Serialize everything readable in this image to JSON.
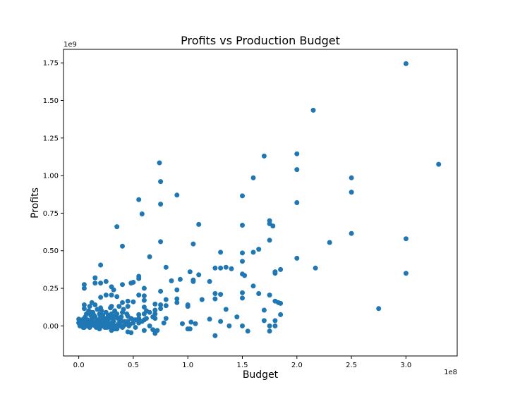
{
  "chart_data": {
    "type": "scatter",
    "title": "Profits vs Production Budget",
    "xlabel": "Budget",
    "ylabel": "Profits",
    "x_offset_label": "1e8",
    "y_offset_label": "1e9",
    "x_scale": 100000000,
    "y_scale": 1000000000,
    "xlim": [
      -0.14,
      3.47
    ],
    "ylim": [
      -0.2,
      1.84
    ],
    "xticks": [
      0.0,
      0.5,
      1.0,
      1.5,
      2.0,
      2.5,
      3.0
    ],
    "xtick_labels": [
      "0.0",
      "0.5",
      "1.0",
      "1.5",
      "2.0",
      "2.5",
      "3.0"
    ],
    "yticks": [
      0.0,
      0.25,
      0.5,
      0.75,
      1.0,
      1.25,
      1.5,
      1.75
    ],
    "ytick_labels": [
      "0.00",
      "0.25",
      "0.50",
      "0.75",
      "1.00",
      "1.25",
      "1.50",
      "1.75"
    ],
    "grid": false,
    "legend": "none",
    "point_color": "#1f77b4",
    "points": [
      [
        3.0,
        1.745
      ],
      [
        2.15,
        1.435
      ],
      [
        2.0,
        1.145
      ],
      [
        1.7,
        1.13
      ],
      [
        3.3,
        1.075
      ],
      [
        0.74,
        1.085
      ],
      [
        2.0,
        1.04
      ],
      [
        2.5,
        0.985
      ],
      [
        1.6,
        0.985
      ],
      [
        0.75,
        0.96
      ],
      [
        2.5,
        0.89
      ],
      [
        0.9,
        0.87
      ],
      [
        1.5,
        0.865
      ],
      [
        0.55,
        0.84
      ],
      [
        2.0,
        0.82
      ],
      [
        0.75,
        0.81
      ],
      [
        0.58,
        0.745
      ],
      [
        1.75,
        0.7
      ],
      [
        1.75,
        0.68
      ],
      [
        1.1,
        0.675
      ],
      [
        1.5,
        0.67
      ],
      [
        1.78,
        0.665
      ],
      [
        0.35,
        0.66
      ],
      [
        2.5,
        0.615
      ],
      [
        3.0,
        0.58
      ],
      [
        1.75,
        0.57
      ],
      [
        0.75,
        0.56
      ],
      [
        2.3,
        0.555
      ],
      [
        1.05,
        0.545
      ],
      [
        0.4,
        0.53
      ],
      [
        1.65,
        0.51
      ],
      [
        1.6,
        0.49
      ],
      [
        1.3,
        0.49
      ],
      [
        1.5,
        0.485
      ],
      [
        0.65,
        0.46
      ],
      [
        2.0,
        0.45
      ],
      [
        1.5,
        0.43
      ],
      [
        0.2,
        0.405
      ],
      [
        0.8,
        0.39
      ],
      [
        1.35,
        0.39
      ],
      [
        1.4,
        0.38
      ],
      [
        1.25,
        0.385
      ],
      [
        1.3,
        0.385
      ],
      [
        2.17,
        0.385
      ],
      [
        1.85,
        0.375
      ],
      [
        1.02,
        0.36
      ],
      [
        1.8,
        0.36
      ],
      [
        1.8,
        0.35
      ],
      [
        3.0,
        0.35
      ],
      [
        1.5,
        0.345
      ],
      [
        1.52,
        0.335
      ],
      [
        1.1,
        0.34
      ],
      [
        0.55,
        0.33
      ],
      [
        0.55,
        0.315
      ],
      [
        0.15,
        0.32
      ],
      [
        0.93,
        0.31
      ],
      [
        1.05,
        0.305
      ],
      [
        0.85,
        0.3
      ],
      [
        1.05,
        0.295
      ],
      [
        1.2,
        0.295
      ],
      [
        0.5,
        0.29
      ],
      [
        0.25,
        0.295
      ],
      [
        0.2,
        0.285
      ],
      [
        0.15,
        0.285
      ],
      [
        0.48,
        0.285
      ],
      [
        0.05,
        0.275
      ],
      [
        0.4,
        0.275
      ],
      [
        0.05,
        0.25
      ],
      [
        0.3,
        0.26
      ],
      [
        0.6,
        0.25
      ],
      [
        0.9,
        0.24
      ],
      [
        0.32,
        0.24
      ],
      [
        1.6,
        0.265
      ],
      [
        1.5,
        0.22
      ],
      [
        1.65,
        0.215
      ],
      [
        0.75,
        0.23
      ],
      [
        1.25,
        0.215
      ],
      [
        1.3,
        0.21
      ],
      [
        0.55,
        0.205
      ],
      [
        0.25,
        0.205
      ],
      [
        0.3,
        0.205
      ],
      [
        0.6,
        0.2
      ],
      [
        1.75,
        0.205
      ],
      [
        0.35,
        0.195
      ],
      [
        0.2,
        0.19
      ],
      [
        1.5,
        0.185
      ],
      [
        1.25,
        0.18
      ],
      [
        0.9,
        0.18
      ],
      [
        1.13,
        0.175
      ],
      [
        0.8,
        0.175
      ],
      [
        0.6,
        0.17
      ],
      [
        0.45,
        0.165
      ],
      [
        1.8,
        0.165
      ],
      [
        0.9,
        0.155
      ],
      [
        1.83,
        0.155
      ],
      [
        1.85,
        0.15
      ],
      [
        0.12,
        0.155
      ],
      [
        0.5,
        0.16
      ],
      [
        0.4,
        0.155
      ],
      [
        0.7,
        0.145
      ],
      [
        0.75,
        0.14
      ],
      [
        0.05,
        0.14
      ],
      [
        0.15,
        0.14
      ],
      [
        0.45,
        0.13
      ],
      [
        1.0,
        0.14
      ],
      [
        0.8,
        0.135
      ],
      [
        1.0,
        0.13
      ],
      [
        0.3,
        0.13
      ],
      [
        0.6,
        0.125
      ],
      [
        0.2,
        0.12
      ],
      [
        0.05,
        0.115
      ],
      [
        0.1,
        0.13
      ],
      [
        1.35,
        0.11
      ],
      [
        0.75,
        0.115
      ],
      [
        0.7,
        0.105
      ],
      [
        1.7,
        0.105
      ],
      [
        2.75,
        0.115
      ],
      [
        0.62,
        0.1
      ],
      [
        0.4,
        0.09
      ],
      [
        0.1,
        0.095
      ],
      [
        0.55,
        0.075
      ],
      [
        0.3,
        0.075
      ],
      [
        1.85,
        0.075
      ],
      [
        0.45,
        0.065
      ],
      [
        1.45,
        0.06
      ],
      [
        0.7,
        0.05
      ],
      [
        0.8,
        0.05
      ],
      [
        1.2,
        0.045
      ],
      [
        0.35,
        0.055
      ],
      [
        0.25,
        0.05
      ],
      [
        0.0,
        0.045
      ],
      [
        0.5,
        0.04
      ],
      [
        0.6,
        0.04
      ],
      [
        1.7,
        0.035
      ],
      [
        1.8,
        0.035
      ],
      [
        1.3,
        0.03
      ],
      [
        1.03,
        0.025
      ],
      [
        0.78,
        0.02
      ],
      [
        0.95,
        0.015
      ],
      [
        1.07,
        0.015
      ],
      [
        1.5,
        0.0
      ],
      [
        1.38,
        0.0
      ],
      [
        0.65,
        0.0
      ],
      [
        0.55,
        0.02
      ],
      [
        1.75,
        0.0
      ],
      [
        1.8,
        0.0
      ],
      [
        1.0,
        -0.02
      ],
      [
        1.02,
        -0.02
      ],
      [
        0.68,
        -0.025
      ],
      [
        0.72,
        -0.03
      ],
      [
        0.6,
        -0.03
      ],
      [
        1.55,
        -0.035
      ],
      [
        1.75,
        -0.035
      ],
      [
        0.45,
        -0.04
      ],
      [
        0.7,
        -0.05
      ],
      [
        0.35,
        -0.02
      ],
      [
        0.3,
        -0.03
      ],
      [
        1.25,
        -0.065
      ],
      [
        0.48,
        -0.045
      ],
      [
        0.03,
        0.01
      ],
      [
        0.06,
        0.02
      ],
      [
        0.08,
        0.0
      ],
      [
        0.1,
        0.03
      ],
      [
        0.12,
        0.05
      ],
      [
        0.14,
        0.01
      ],
      [
        0.16,
        -0.01
      ],
      [
        0.18,
        0.04
      ],
      [
        0.2,
        0.06
      ],
      [
        0.22,
        0.0
      ],
      [
        0.24,
        0.03
      ],
      [
        0.26,
        -0.01
      ],
      [
        0.28,
        0.05
      ],
      [
        0.3,
        0.02
      ],
      [
        0.32,
        -0.02
      ],
      [
        0.34,
        0.07
      ],
      [
        0.36,
        0.01
      ],
      [
        0.38,
        0.04
      ],
      [
        0.4,
        -0.01
      ],
      [
        0.42,
        0.03
      ],
      [
        0.44,
        0.08
      ],
      [
        0.46,
        0.0
      ],
      [
        0.48,
        0.05
      ],
      [
        0.5,
        0.02
      ],
      [
        0.52,
        -0.01
      ],
      [
        0.05,
        0.05
      ],
      [
        0.07,
        0.08
      ],
      [
        0.09,
        0.1
      ],
      [
        0.11,
        0.07
      ],
      [
        0.13,
        0.09
      ],
      [
        0.15,
        0.06
      ],
      [
        0.17,
        0.11
      ],
      [
        0.19,
        0.08
      ],
      [
        0.21,
        0.1
      ],
      [
        0.23,
        0.04
      ],
      [
        0.25,
        0.09
      ],
      [
        0.27,
        0.07
      ],
      [
        0.29,
        0.12
      ],
      [
        0.31,
        0.05
      ],
      [
        0.33,
        0.1
      ],
      [
        0.35,
        0.08
      ],
      [
        0.37,
        0.13
      ],
      [
        0.39,
        0.06
      ],
      [
        0.41,
        0.11
      ],
      [
        0.43,
        0.02
      ],
      [
        0.02,
        0.03
      ],
      [
        0.04,
        -0.01
      ],
      [
        0.06,
        0.06
      ],
      [
        0.08,
        0.04
      ],
      [
        0.1,
        -0.01
      ],
      [
        0.12,
        0.02
      ],
      [
        0.14,
        0.07
      ],
      [
        0.16,
        0.03
      ],
      [
        0.18,
        0.0
      ],
      [
        0.2,
        0.02
      ],
      [
        0.22,
        0.07
      ],
      [
        0.24,
        -0.01
      ],
      [
        0.26,
        0.04
      ],
      [
        0.28,
        0.0
      ],
      [
        0.3,
        0.08
      ],
      [
        0.32,
        0.03
      ],
      [
        0.34,
        -0.02
      ],
      [
        0.36,
        0.05
      ],
      [
        0.38,
        0.0
      ],
      [
        0.0,
        0.02
      ],
      [
        0.01,
        0.0
      ],
      [
        0.02,
        0.01
      ],
      [
        0.03,
        0.04
      ],
      [
        0.04,
        0.02
      ],
      [
        0.05,
        -0.01
      ],
      [
        0.09,
        0.01
      ],
      [
        0.11,
        0.0
      ],
      [
        0.13,
        0.03
      ],
      [
        0.15,
        0.0
      ],
      [
        0.17,
        0.02
      ],
      [
        0.19,
        -0.02
      ],
      [
        0.21,
        0.03
      ],
      [
        0.23,
        0.01
      ],
      [
        0.25,
        0.0
      ],
      [
        0.27,
        0.02
      ],
      [
        0.29,
        -0.01
      ],
      [
        0.31,
        0.01
      ],
      [
        0.33,
        0.0
      ],
      [
        0.37,
        0.02
      ],
      [
        0.39,
        0.03
      ],
      [
        0.41,
        0.0
      ],
      [
        0.43,
        0.01
      ],
      [
        0.45,
        0.03
      ],
      [
        0.47,
        0.01
      ],
      [
        0.52,
        0.04
      ],
      [
        0.55,
        0.05
      ],
      [
        0.58,
        0.03
      ],
      [
        0.6,
        0.08
      ],
      [
        0.62,
        0.05
      ],
      [
        0.65,
        0.09
      ],
      [
        0.68,
        0.06
      ],
      [
        0.7,
        0.08
      ]
    ]
  }
}
